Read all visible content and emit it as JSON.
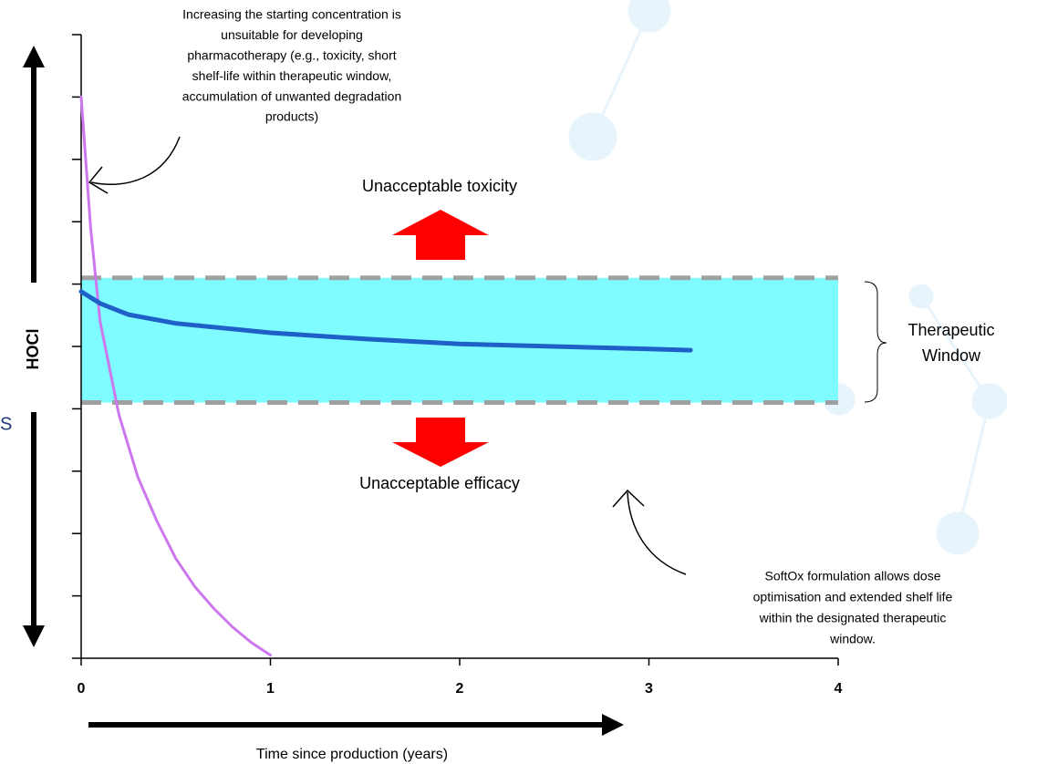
{
  "chart_data": {
    "type": "line",
    "x_label": "Time since production (years)",
    "y_label": "HOCl",
    "xlim": [
      0,
      4
    ],
    "xticks": [
      0,
      1,
      2,
      3,
      4
    ],
    "ylim": [
      0,
      10
    ],
    "yticks": [
      0,
      1,
      2,
      3,
      4,
      5,
      6,
      7,
      8,
      9,
      10
    ],
    "band": {
      "ymin": 4.1,
      "ymax": 6.1,
      "color": "#7ffcff",
      "edge_color": "#a0a0a0"
    },
    "series": [
      {
        "color": "#cc77ee",
        "x": [
          0,
          0.05,
          0.1,
          0.2,
          0.3,
          0.4,
          0.5,
          0.6,
          0.7,
          0.8,
          0.9,
          1.0
        ],
        "values": [
          9.0,
          6.9,
          5.4,
          3.9,
          2.9,
          2.2,
          1.6,
          1.15,
          0.8,
          0.5,
          0.25,
          0.05
        ]
      },
      {
        "color": "#1f5fc8",
        "x": [
          0,
          0.1,
          0.25,
          0.5,
          1.0,
          1.5,
          2.0,
          2.5,
          3.0,
          3.22
        ],
        "values": [
          5.88,
          5.69,
          5.51,
          5.37,
          5.22,
          5.12,
          5.04,
          5.0,
          4.96,
          4.94
        ]
      }
    ],
    "annotations": {
      "top_note": [
        "Increasing the starting concentration is",
        "unsuitable for developing",
        "pharmacotherapy (e.g., toxicity, short",
        "shelf-life within therapeutic window,",
        "accumulation of unwanted degradation",
        "products)"
      ],
      "toxicity": "Unacceptable toxicity",
      "efficacy": "Unacceptable efficacy",
      "window": [
        "Therapeutic",
        "Window"
      ],
      "bottom_note": [
        "SoftOx formulation allows dose",
        "optimisation and extended shelf life",
        "within the designated therapeutic",
        "window."
      ],
      "edge_letter": "S"
    }
  }
}
